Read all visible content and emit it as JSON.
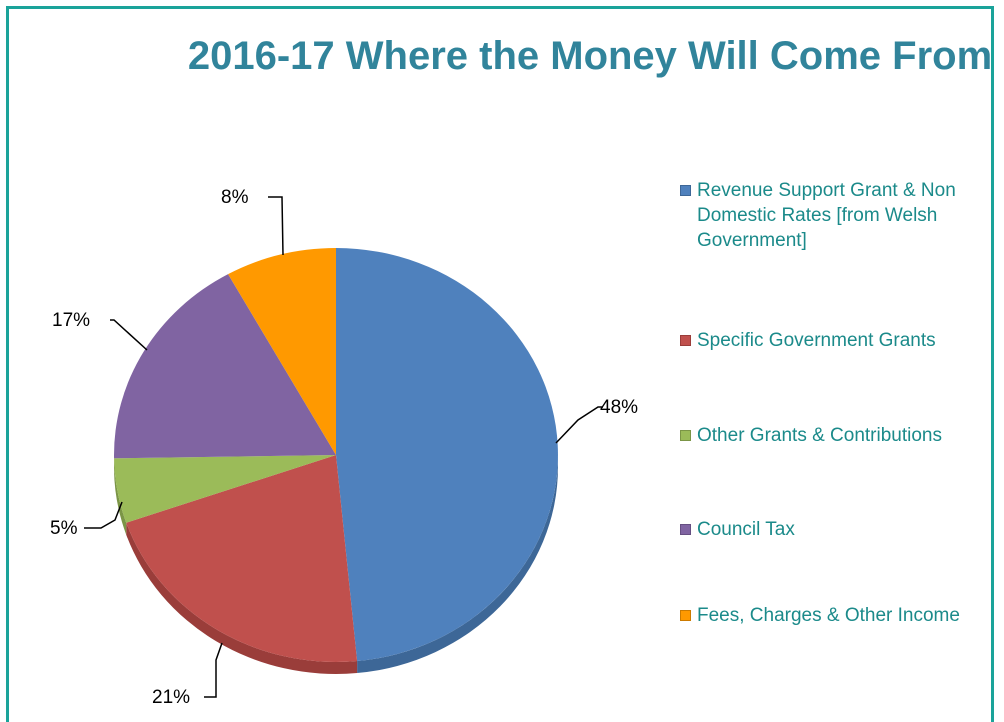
{
  "chart_data": {
    "type": "pie",
    "title": "2016-17 Where the Money Will Come From",
    "categories": [
      "Revenue Support Grant & Non Domestic Rates [from Welsh Government]",
      "Specific Government Grants",
      "Other Grants & Contributions",
      "Council Tax",
      "Fees, Charges & Other Income"
    ],
    "values": [
      48,
      21,
      5,
      17,
      8
    ],
    "data_labels": [
      "48%",
      "21%",
      "5%",
      "17%",
      "8%"
    ],
    "colors": [
      "#4f81bd",
      "#c0504d",
      "#9bbb59",
      "#8064a2",
      "#ff9900"
    ],
    "side_colors": [
      "#3d6797",
      "#9a3d3a",
      "#7b9546",
      "#664f82",
      "#cc7a00"
    ],
    "legend_position": "right",
    "style": "3d-pie"
  }
}
